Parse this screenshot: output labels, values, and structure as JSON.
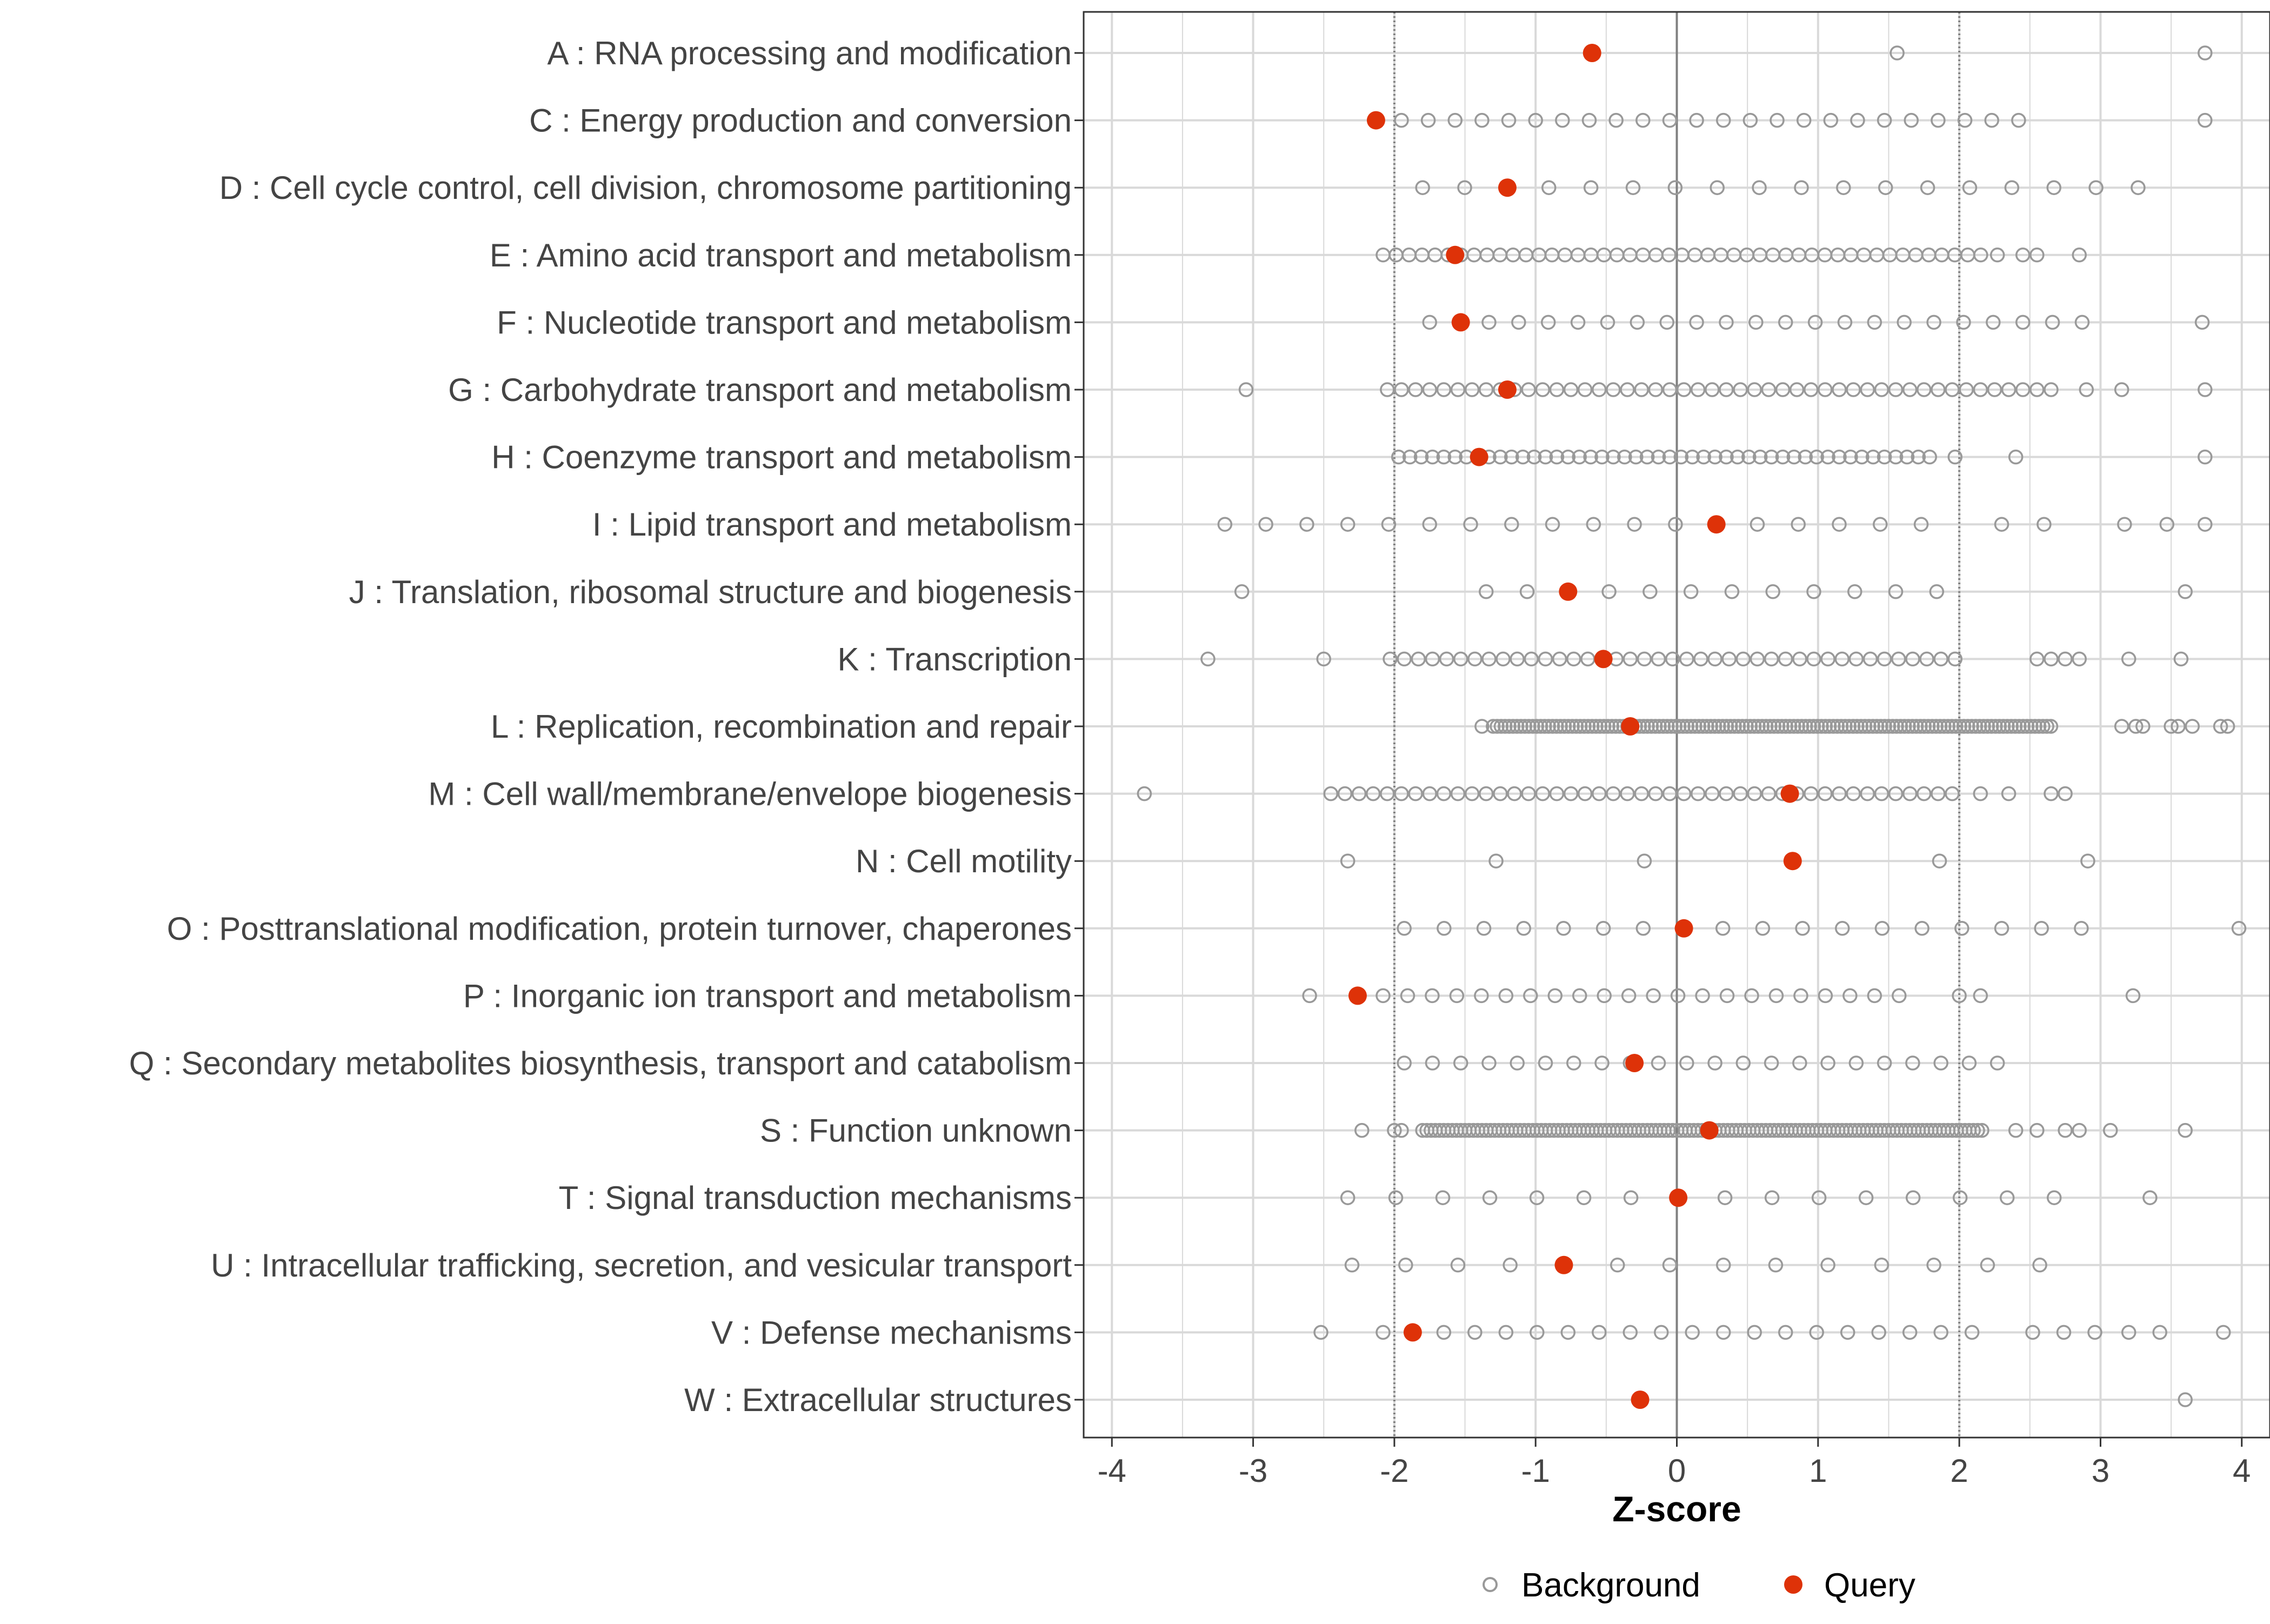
{
  "chart_data": {
    "type": "scatter",
    "xlabel": "Z-score",
    "xlim": [
      -4.2,
      4.2
    ],
    "x_ticks": [
      -4,
      -3,
      -2,
      -1,
      0,
      1,
      2,
      3,
      4
    ],
    "x_tick_labels": [
      "-4",
      "-3",
      "-2",
      "-1",
      "0",
      "1",
      "2",
      "3",
      "4"
    ],
    "reference_lines": {
      "solid": [
        0
      ],
      "dotted": [
        -2,
        2
      ]
    },
    "legend": {
      "position": "bottom",
      "entries": [
        "Background",
        "Query"
      ]
    },
    "colors": {
      "background_stroke": "#999999",
      "query_fill": "#de3208",
      "grid": "#d9d9d9",
      "zero_line": "#808080",
      "dotted_line": "#7f7f7f",
      "axis_text": "#444444"
    },
    "categories": [
      {
        "label": "A : RNA processing and modification",
        "query": -0.6,
        "background": {
          "points": [
            1.56,
            3.74
          ]
        }
      },
      {
        "label": "C : Energy production and conversion",
        "query": -2.13,
        "background": {
          "points": [
            3.74
          ],
          "ranges": [
            {
              "from": -1.95,
              "to": 2.6,
              "step": 0.19
            }
          ]
        }
      },
      {
        "label": "D : Cell cycle control, cell division, chromosome partitioning",
        "query": -1.2,
        "background": {
          "points": [],
          "ranges": [
            {
              "from": -1.8,
              "to": 3.56,
              "step": 0.298
            }
          ]
        }
      },
      {
        "label": "E : Amino acid transport and metabolism",
        "query": -1.57,
        "background": {
          "points": [
            2.27,
            2.45,
            2.55,
            2.85
          ],
          "ranges": [
            {
              "from": -2.08,
              "to": 2.18,
              "step": 0.092
            }
          ]
        }
      },
      {
        "label": "F : Nucleotide transport and metabolism",
        "query": -1.53,
        "background": {
          "points": [
            3.72
          ],
          "ranges": [
            {
              "from": -1.75,
              "to": 2.88,
              "step": 0.21
            }
          ]
        }
      },
      {
        "label": "G : Carbohydrate transport and metabolism",
        "query": -1.2,
        "background": {
          "points": [
            -3.05,
            2.9,
            3.15,
            3.74
          ],
          "ranges": [
            {
              "from": -2.05,
              "to": 2.65,
              "step": 0.1
            }
          ]
        }
      },
      {
        "label": "H : Coenzyme transport and metabolism",
        "query": -1.4,
        "background": {
          "points": [
            1.97,
            2.4,
            3.74
          ],
          "ranges": [
            {
              "from": -1.97,
              "to": 1.82,
              "step": 0.08
            }
          ]
        }
      },
      {
        "label": "I : Lipid transport and metabolism",
        "query": 0.28,
        "background": {
          "points": [
            2.3,
            2.6,
            3.17,
            3.47,
            3.74
          ],
          "ranges": [
            {
              "from": -3.2,
              "to": 1.73,
              "step": 0.29
            }
          ]
        }
      },
      {
        "label": "J : Translation, ribosomal structure and biogenesis",
        "query": -0.77,
        "background": {
          "points": [
            -3.08,
            3.6
          ],
          "ranges": [
            {
              "from": -1.35,
              "to": 2.12,
              "step": 0.29
            }
          ]
        }
      },
      {
        "label": "K : Transcription",
        "query": -0.52,
        "background": {
          "points": [
            -3.32,
            -2.5,
            2.55,
            2.65,
            2.75,
            2.85,
            3.2,
            3.57
          ],
          "ranges": [
            {
              "from": -2.03,
              "to": 2.05,
              "step": 0.1
            }
          ]
        }
      },
      {
        "label": "L : Replication, recombination and repair",
        "query": -0.33,
        "background": {
          "points": [
            -1.38,
            3.15,
            3.25,
            3.3,
            3.5,
            3.55,
            3.65,
            3.85,
            3.9
          ],
          "ranges": [
            {
              "from": -1.3,
              "to": 2.65,
              "step": 0.028
            }
          ]
        }
      },
      {
        "label": "M : Cell wall/membrane/envelope biogenesis",
        "query": 0.8,
        "background": {
          "points": [
            -3.77,
            2.15,
            2.35,
            2.65,
            2.75
          ],
          "ranges": [
            {
              "from": -2.45,
              "to": 1.95,
              "step": 0.1
            }
          ]
        }
      },
      {
        "label": "N : Cell motility",
        "query": 0.82,
        "background": {
          "points": [
            -2.33,
            -1.28,
            -0.23,
            1.86,
            2.91
          ]
        }
      },
      {
        "label": "O : Posttranslational modification, protein turnover, chaperones",
        "query": 0.05,
        "background": {
          "points": [
            3.98
          ],
          "ranges": [
            {
              "from": -1.93,
              "to": 2.87,
              "step": 0.282
            }
          ]
        }
      },
      {
        "label": "P : Inorganic ion transport and metabolism",
        "query": -2.26,
        "background": {
          "points": [
            -2.6,
            2.0,
            2.15,
            3.23
          ],
          "ranges": [
            {
              "from": -2.08,
              "to": 1.63,
              "step": 0.174
            }
          ]
        }
      },
      {
        "label": "Q : Secondary metabolites biosynthesis, transport and catabolism",
        "query": -0.3,
        "background": {
          "points": [],
          "ranges": [
            {
              "from": -1.93,
              "to": 2.35,
              "step": 0.2
            }
          ]
        }
      },
      {
        "label": "S : Function unknown",
        "query": 0.23,
        "background": {
          "points": [
            -2.23,
            -2.0,
            -1.95,
            2.4,
            2.55,
            2.75,
            2.85,
            3.07,
            3.6
          ],
          "ranges": [
            {
              "from": -1.8,
              "to": 2.17,
              "step": 0.03
            }
          ]
        }
      },
      {
        "label": "T : Signal transduction mechanisms",
        "query": 0.01,
        "background": {
          "points": [
            -2.33,
            3.35
          ],
          "ranges": [
            {
              "from": -1.99,
              "to": 3.0,
              "step": 0.333
            }
          ]
        }
      },
      {
        "label": "U : Intracellular trafficking, secretion, and vesicular transport",
        "query": -0.8,
        "background": {
          "points": [
            -2.3,
            -1.92,
            -1.55,
            -1.18,
            -0.42,
            -0.05,
            0.33,
            0.7,
            1.07,
            1.45,
            1.82,
            2.2,
            2.57
          ]
        }
      },
      {
        "label": "V : Defense mechanisms",
        "query": -1.87,
        "background": {
          "points": [
            -2.52,
            -2.08,
            2.52,
            2.74,
            2.96,
            3.2,
            3.42,
            3.87
          ],
          "ranges": [
            {
              "from": -1.65,
              "to": 2.09,
              "step": 0.22
            }
          ]
        }
      },
      {
        "label": "W : Extracellular structures",
        "query": -0.26,
        "background": {
          "points": [
            3.6
          ]
        }
      }
    ]
  }
}
